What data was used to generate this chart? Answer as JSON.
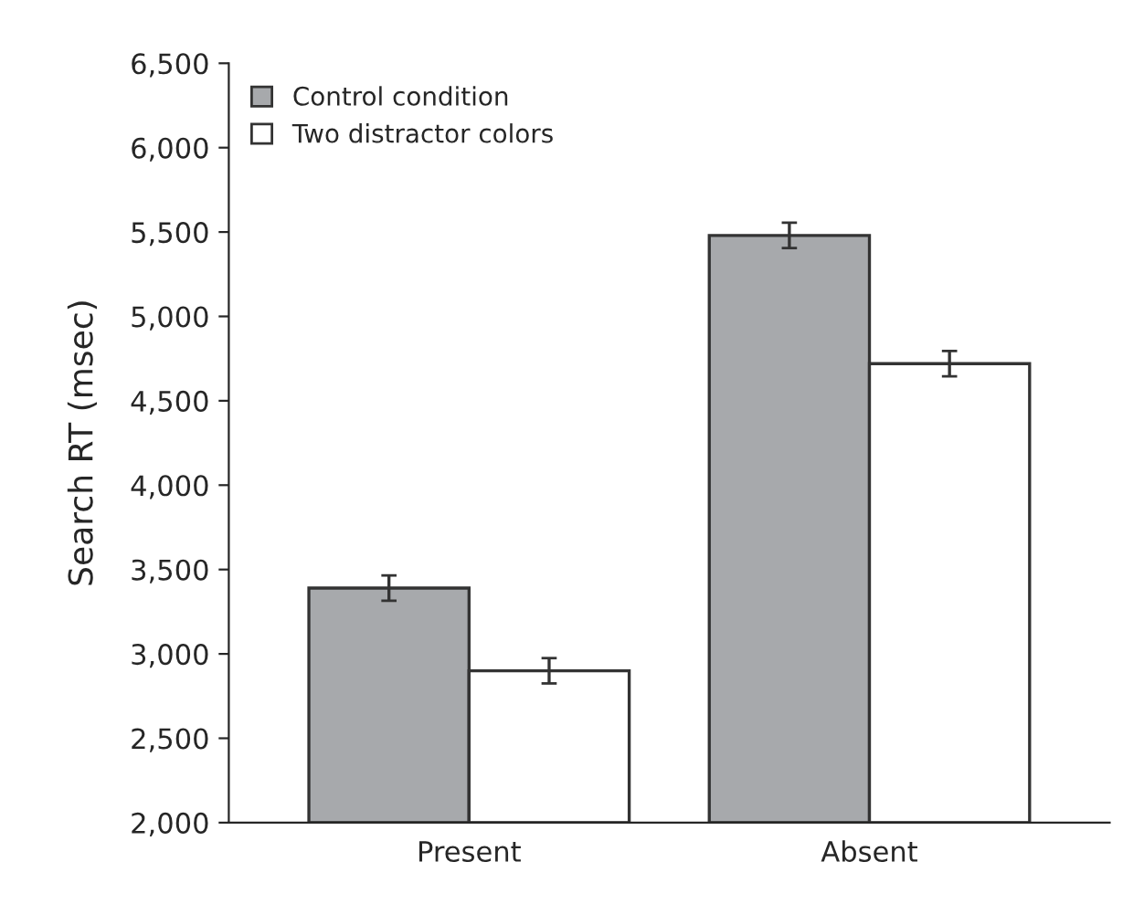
{
  "chart_data": {
    "type": "bar",
    "ylabel": "Search RT (msec)",
    "categories": [
      "Present",
      "Absent"
    ],
    "series": [
      {
        "name": "Control condition",
        "color": "#a7a9ac",
        "values": [
          3390,
          5480
        ],
        "errors": [
          75,
          75
        ]
      },
      {
        "name": "Two distractor colors",
        "color": "#ffffff",
        "values": [
          2900,
          4720
        ],
        "errors": [
          75,
          75
        ]
      }
    ],
    "ylim": [
      2000,
      6500
    ],
    "yticks": [
      {
        "value": 2000,
        "label": "2,000"
      },
      {
        "value": 2500,
        "label": "2,500"
      },
      {
        "value": 3000,
        "label": "3,000"
      },
      {
        "value": 3500,
        "label": "3,500"
      },
      {
        "value": 4000,
        "label": "4,000"
      },
      {
        "value": 4500,
        "label": "4,500"
      },
      {
        "value": 5000,
        "label": "5,000"
      },
      {
        "value": 5500,
        "label": "5,500"
      },
      {
        "value": 6000,
        "label": "6,000"
      },
      {
        "value": 6500,
        "label": "6,500"
      }
    ],
    "legend": "top left",
    "grid": false
  }
}
